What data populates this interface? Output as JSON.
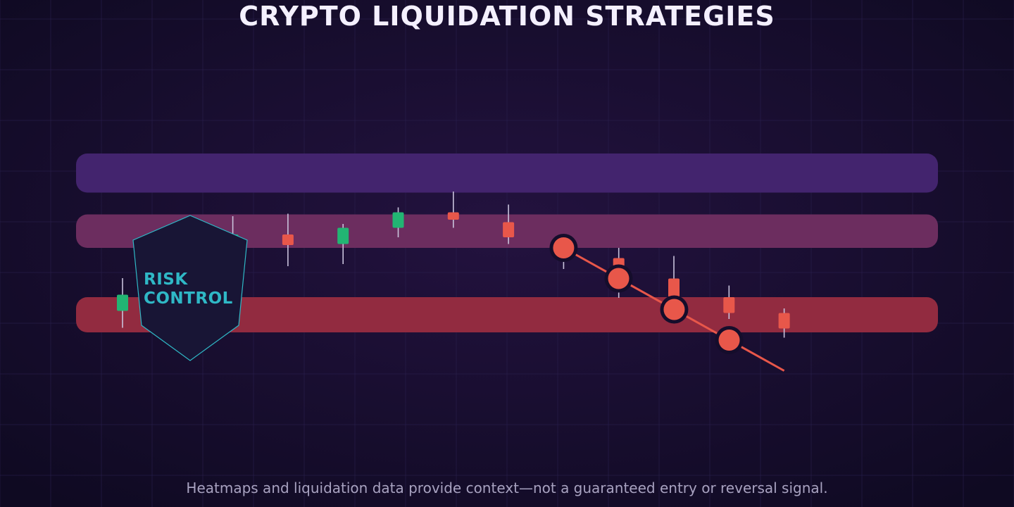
{
  "title": "CRYPTO LIQUIDATION STRATEGIES",
  "caption": "Heatmaps and liquidation data provide context—not a guaranteed entry or reversal signal.",
  "badge": {
    "icon": "shield-icon",
    "lines": [
      "RISK",
      "CONTROL"
    ],
    "color": "#2fb8c6"
  },
  "colors": {
    "background": "#150d2b",
    "grid": "#2b2150",
    "bullish": "#22b573",
    "bearish": "#e8574a",
    "wick": "#c9c3dc",
    "zone_top": "#43246e",
    "zone_mid": "#6c2d5f",
    "zone_low": "#922b40",
    "liquidation_line": "#e8574a"
  },
  "chart_data": {
    "type": "candlestick",
    "title": "",
    "xlabel": "",
    "ylabel": "",
    "grid": true,
    "legend": "none",
    "ylim": [
      0,
      100
    ],
    "zones": [
      {
        "name": "upper-zone",
        "from": 69.3,
        "to": 80.4
      },
      {
        "name": "middle-zone",
        "from": 53.6,
        "to": 63.1
      },
      {
        "name": "lower-zone",
        "from": 29.6,
        "to": 39.6
      }
    ],
    "candles": [
      {
        "open": 35.7,
        "close": 40.3,
        "high": 45.0,
        "low": 30.9,
        "dir": "up"
      },
      {
        "open": 44.3,
        "close": 50.0,
        "high": 51.0,
        "low": 43.3,
        "dir": "up"
      },
      {
        "open": 53.0,
        "close": 57.4,
        "high": 62.6,
        "low": 48.6,
        "dir": "up"
      },
      {
        "open": 57.4,
        "close": 54.4,
        "high": 63.3,
        "low": 48.4,
        "dir": "down"
      },
      {
        "open": 54.7,
        "close": 59.3,
        "high": 60.4,
        "low": 49.0,
        "dir": "up"
      },
      {
        "open": 59.3,
        "close": 63.7,
        "high": 65.1,
        "low": 56.6,
        "dir": "up"
      },
      {
        "open": 63.7,
        "close": 61.6,
        "high": 69.6,
        "low": 59.3,
        "dir": "down"
      },
      {
        "open": 60.9,
        "close": 56.6,
        "high": 65.9,
        "low": 54.7,
        "dir": "down"
      },
      {
        "open": 56.6,
        "close": 50.7,
        "high": 57.4,
        "low": 47.6,
        "dir": "down"
      },
      {
        "open": 50.7,
        "close": 44.9,
        "high": 53.6,
        "low": 39.4,
        "dir": "down"
      },
      {
        "open": 44.9,
        "close": 39.6,
        "high": 51.3,
        "low": 36.4,
        "dir": "down"
      },
      {
        "open": 39.6,
        "close": 35.1,
        "high": 42.9,
        "low": 33.4,
        "dir": "down"
      },
      {
        "open": 35.1,
        "close": 30.7,
        "high": 36.4,
        "low": 28.1,
        "dir": "down"
      }
    ],
    "liquidation_path": {
      "start_candle": 8.0,
      "end_candle": 12.0,
      "from": 53.6,
      "to": 18.7,
      "markers": [
        53.6,
        44.9,
        36.1,
        27.4
      ]
    }
  }
}
